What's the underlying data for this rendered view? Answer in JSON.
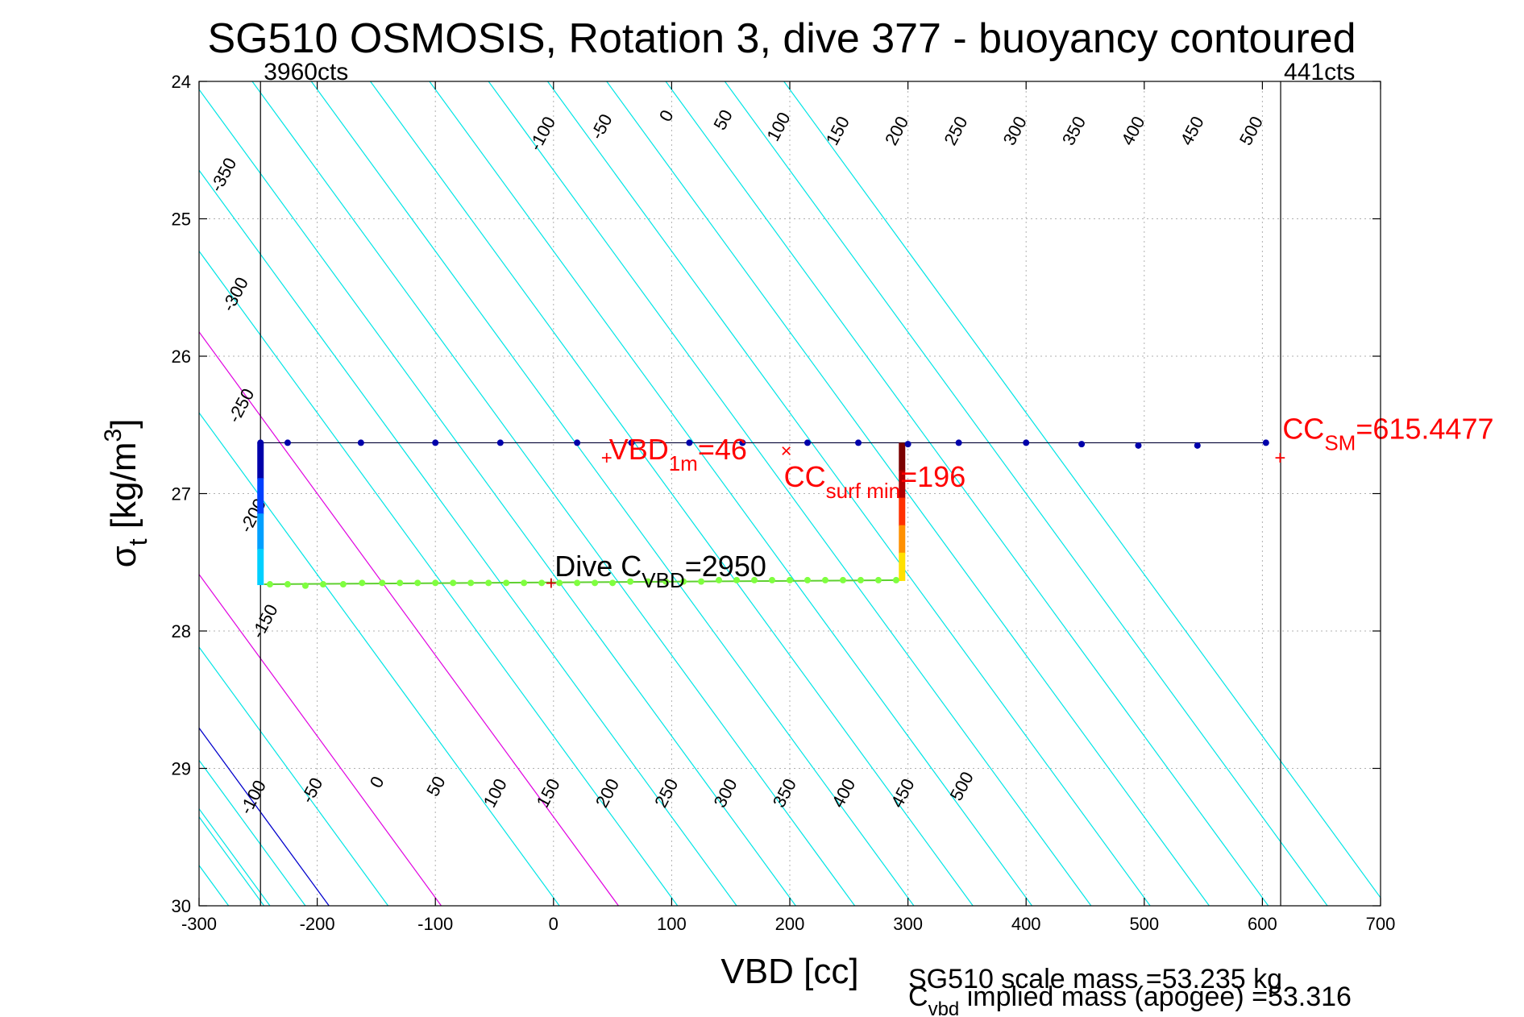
{
  "chart_data": {
    "type": "scatter",
    "title": "SG510 OSMOSIS, Rotation 3, dive 377 - buoyancy contoured",
    "xlabel": "VBD [cc]",
    "ylabel": {
      "main": "σ",
      "sub": "t",
      "unit": " [kg/m",
      "sup": "3",
      "close": "]"
    },
    "xlim": [
      -300,
      700
    ],
    "ylim": [
      24,
      30
    ],
    "y_reversed": true,
    "grid": true,
    "x_ticks": [
      -300,
      -200,
      -100,
      0,
      100,
      200,
      300,
      400,
      500,
      600,
      700
    ],
    "x_tick_labels": [
      "-300",
      "-200",
      "-100",
      "0",
      "100",
      "200",
      "300",
      "400",
      "500",
      "600",
      "700"
    ],
    "y_ticks": [
      24,
      25,
      26,
      27,
      28,
      29,
      30
    ],
    "y_tick_labels": [
      "24",
      "25",
      "26",
      "27",
      "28",
      "29",
      "30"
    ],
    "vertical_lines": [
      {
        "x": -248,
        "label": "3960cts"
      },
      {
        "x": 615.4477,
        "label": "441cts"
      }
    ],
    "contour_colors": {
      "default": "#00e5e5",
      "zero": "#0000cc",
      "highlight": "#e000e0"
    },
    "contour_slope_cc_per_sigma": 85,
    "contours": [
      {
        "value": -350,
        "x_at_30": -375,
        "label": "-350"
      },
      {
        "value": -300,
        "x_at_30": -350,
        "label": "-300"
      },
      {
        "value": -250,
        "x_at_30": -300,
        "label": "-250"
      },
      {
        "value": -200,
        "x_at_30": -275,
        "label": "-200"
      },
      {
        "value": -150,
        "x_at_30": -245,
        "label": "-150"
      },
      {
        "value": -100,
        "x_at_30": -240,
        "label": "-100"
      },
      {
        "value": -50,
        "x_at_30": -210,
        "label": "-50"
      },
      {
        "value": 0,
        "x_at_30": -190,
        "label": "0"
      },
      {
        "value": 50,
        "x_at_30": -140,
        "label": "50"
      },
      {
        "value": 100,
        "x_at_30": -95,
        "label": "100"
      },
      {
        "value": 150,
        "x_at_30": 5,
        "label": "150"
      },
      {
        "value": 200,
        "x_at_30": 55,
        "label": "200"
      },
      {
        "value": 250,
        "x_at_30": 105,
        "label": "250"
      },
      {
        "value": 300,
        "x_at_30": 155,
        "label": "300"
      },
      {
        "value": 350,
        "x_at_30": 205,
        "label": "350"
      },
      {
        "value": 400,
        "x_at_30": 255,
        "label": "400"
      },
      {
        "value": 450,
        "x_at_30": 305,
        "label": "450"
      },
      {
        "value": 500,
        "x_at_30": 355,
        "label": "500"
      },
      {
        "value": 550,
        "x_at_30": 405,
        "label": ""
      },
      {
        "value": 600,
        "x_at_30": 455,
        "label": ""
      },
      {
        "value": 650,
        "x_at_30": 505,
        "label": ""
      },
      {
        "value": 700,
        "x_at_30": 555,
        "label": ""
      },
      {
        "value": 750,
        "x_at_30": 605,
        "label": ""
      },
      {
        "value": 800,
        "x_at_30": 655,
        "label": ""
      },
      {
        "value": 850,
        "x_at_30": 705,
        "label": ""
      }
    ],
    "contour_labels_top": [
      {
        "text": "-350",
        "x": -275,
        "y": 24.7
      },
      {
        "text": "-100",
        "x": -5,
        "y": 24.4
      },
      {
        "text": "-50",
        "x": 45,
        "y": 24.35
      },
      {
        "text": "0",
        "x": 100,
        "y": 24.27
      },
      {
        "text": "50",
        "x": 148,
        "y": 24.3
      },
      {
        "text": "100",
        "x": 195,
        "y": 24.35
      },
      {
        "text": "150",
        "x": 245,
        "y": 24.38
      },
      {
        "text": "200",
        "x": 295,
        "y": 24.38
      },
      {
        "text": "250",
        "x": 345,
        "y": 24.38
      },
      {
        "text": "300",
        "x": 395,
        "y": 24.38
      },
      {
        "text": "350",
        "x": 445,
        "y": 24.38
      },
      {
        "text": "400",
        "x": 495,
        "y": 24.38
      },
      {
        "text": "450",
        "x": 545,
        "y": 24.38
      },
      {
        "text": "500",
        "x": 595,
        "y": 24.38
      },
      {
        "text": "-300",
        "x": -265,
        "y": 25.57
      },
      {
        "text": "-250",
        "x": -260,
        "y": 26.38
      },
      {
        "text": "-200",
        "x": -250,
        "y": 27.18
      },
      {
        "text": "-150",
        "x": -240,
        "y": 27.95
      }
    ],
    "contour_labels_bottom": [
      {
        "text": "-100",
        "x": -250,
        "y": 29.23
      },
      {
        "text": "-50",
        "x": -200,
        "y": 29.18
      },
      {
        "text": "0",
        "x": -145,
        "y": 29.12
      },
      {
        "text": "50",
        "x": -95,
        "y": 29.15
      },
      {
        "text": "100",
        "x": -45,
        "y": 29.2
      },
      {
        "text": "150",
        "x": 0,
        "y": 29.2
      },
      {
        "text": "200",
        "x": 50,
        "y": 29.2
      },
      {
        "text": "250",
        "x": 100,
        "y": 29.2
      },
      {
        "text": "300",
        "x": 150,
        "y": 29.2
      },
      {
        "text": "350",
        "x": 200,
        "y": 29.2
      },
      {
        "text": "400",
        "x": 250,
        "y": 29.2
      },
      {
        "text": "450",
        "x": 300,
        "y": 29.2
      },
      {
        "text": "500",
        "x": 350,
        "y": 29.15
      }
    ],
    "series": [
      {
        "points_x": [
          -248,
          -225,
          -163,
          -100,
          -45,
          20,
          66,
          115,
          160,
          215,
          258,
          300,
          343,
          400,
          447,
          495,
          545,
          603
        ],
        "points_y": [
          26.63,
          26.63,
          26.63,
          26.63,
          26.63,
          26.63,
          26.63,
          26.63,
          26.63,
          26.63,
          26.63,
          26.64,
          26.63,
          26.63,
          26.64,
          26.65,
          26.65,
          26.63
        ],
        "color": "#0000aa"
      },
      {
        "points_x": [
          -240,
          -225,
          -210,
          -195,
          -178,
          -162,
          -145,
          -130,
          -115,
          -100,
          -85,
          -70,
          -55,
          -40,
          -25,
          -10,
          5,
          20,
          35,
          50,
          65,
          80,
          95,
          110,
          125,
          140,
          155,
          170,
          185,
          200,
          215,
          230,
          245,
          260,
          275,
          290
        ],
        "points_y": [
          27.66,
          27.66,
          27.67,
          27.66,
          27.66,
          27.65,
          27.65,
          27.65,
          27.65,
          27.65,
          27.65,
          27.65,
          27.65,
          27.65,
          27.65,
          27.65,
          27.65,
          27.65,
          27.65,
          27.65,
          27.64,
          27.64,
          27.64,
          27.64,
          27.64,
          27.63,
          27.63,
          27.63,
          27.63,
          27.63,
          27.63,
          27.63,
          27.63,
          27.63,
          27.63,
          27.63
        ],
        "color": "#7fff3f"
      }
    ],
    "profile_lines": {
      "top": {
        "x": [
          -248,
          603
        ],
        "y": [
          26.63,
          26.63
        ]
      },
      "bottom": {
        "x": [
          -245,
          295
        ],
        "y": [
          27.66,
          27.63
        ]
      }
    },
    "descent_column": {
      "x": -248,
      "y_from": 26.63,
      "y_to": 27.66,
      "colors": [
        "#0000aa",
        "#0040ff",
        "#00a0ff",
        "#00d0ff"
      ]
    },
    "ascent_column": {
      "x": 295,
      "y_from": 26.63,
      "y_to": 27.63,
      "colors": [
        "#7a0000",
        "#b00000",
        "#ff3000",
        "#ff9000",
        "#ffe000"
      ]
    },
    "markers": [
      {
        "x": 45,
        "y": 26.74,
        "symbol": "+",
        "color": "#ff0000"
      },
      {
        "x": 197,
        "y": 26.69,
        "symbol": "×",
        "color": "#ff0000"
      },
      {
        "x": 615,
        "y": 26.74,
        "symbol": "+",
        "color": "#ff0000"
      },
      {
        "x": -2,
        "y": 27.65,
        "symbol": "+",
        "color": "#cc0000"
      }
    ],
    "annotations": [
      {
        "main": "VBD",
        "sub": "1m",
        "rest": "=46",
        "x": 47,
        "y": 26.75,
        "color": "#ff0000"
      },
      {
        "main": "CC",
        "sub": "surf min",
        "rest": "=196",
        "x": 195,
        "y": 26.95,
        "color": "#ff0000"
      },
      {
        "main": "CC",
        "sub": "SM",
        "rest": "=615.4477",
        "x": 617,
        "y": 26.6,
        "color": "#ff0000"
      },
      {
        "main": "Dive C",
        "sub": "VBD",
        "rest": "=2950",
        "x": 1,
        "y": 27.6,
        "color": "#000000"
      }
    ],
    "footer_lines": [
      "SG510 scale mass =53.235 kg",
      "C",
      "vbd",
      " implied mass (apogee) =53.316"
    ]
  }
}
